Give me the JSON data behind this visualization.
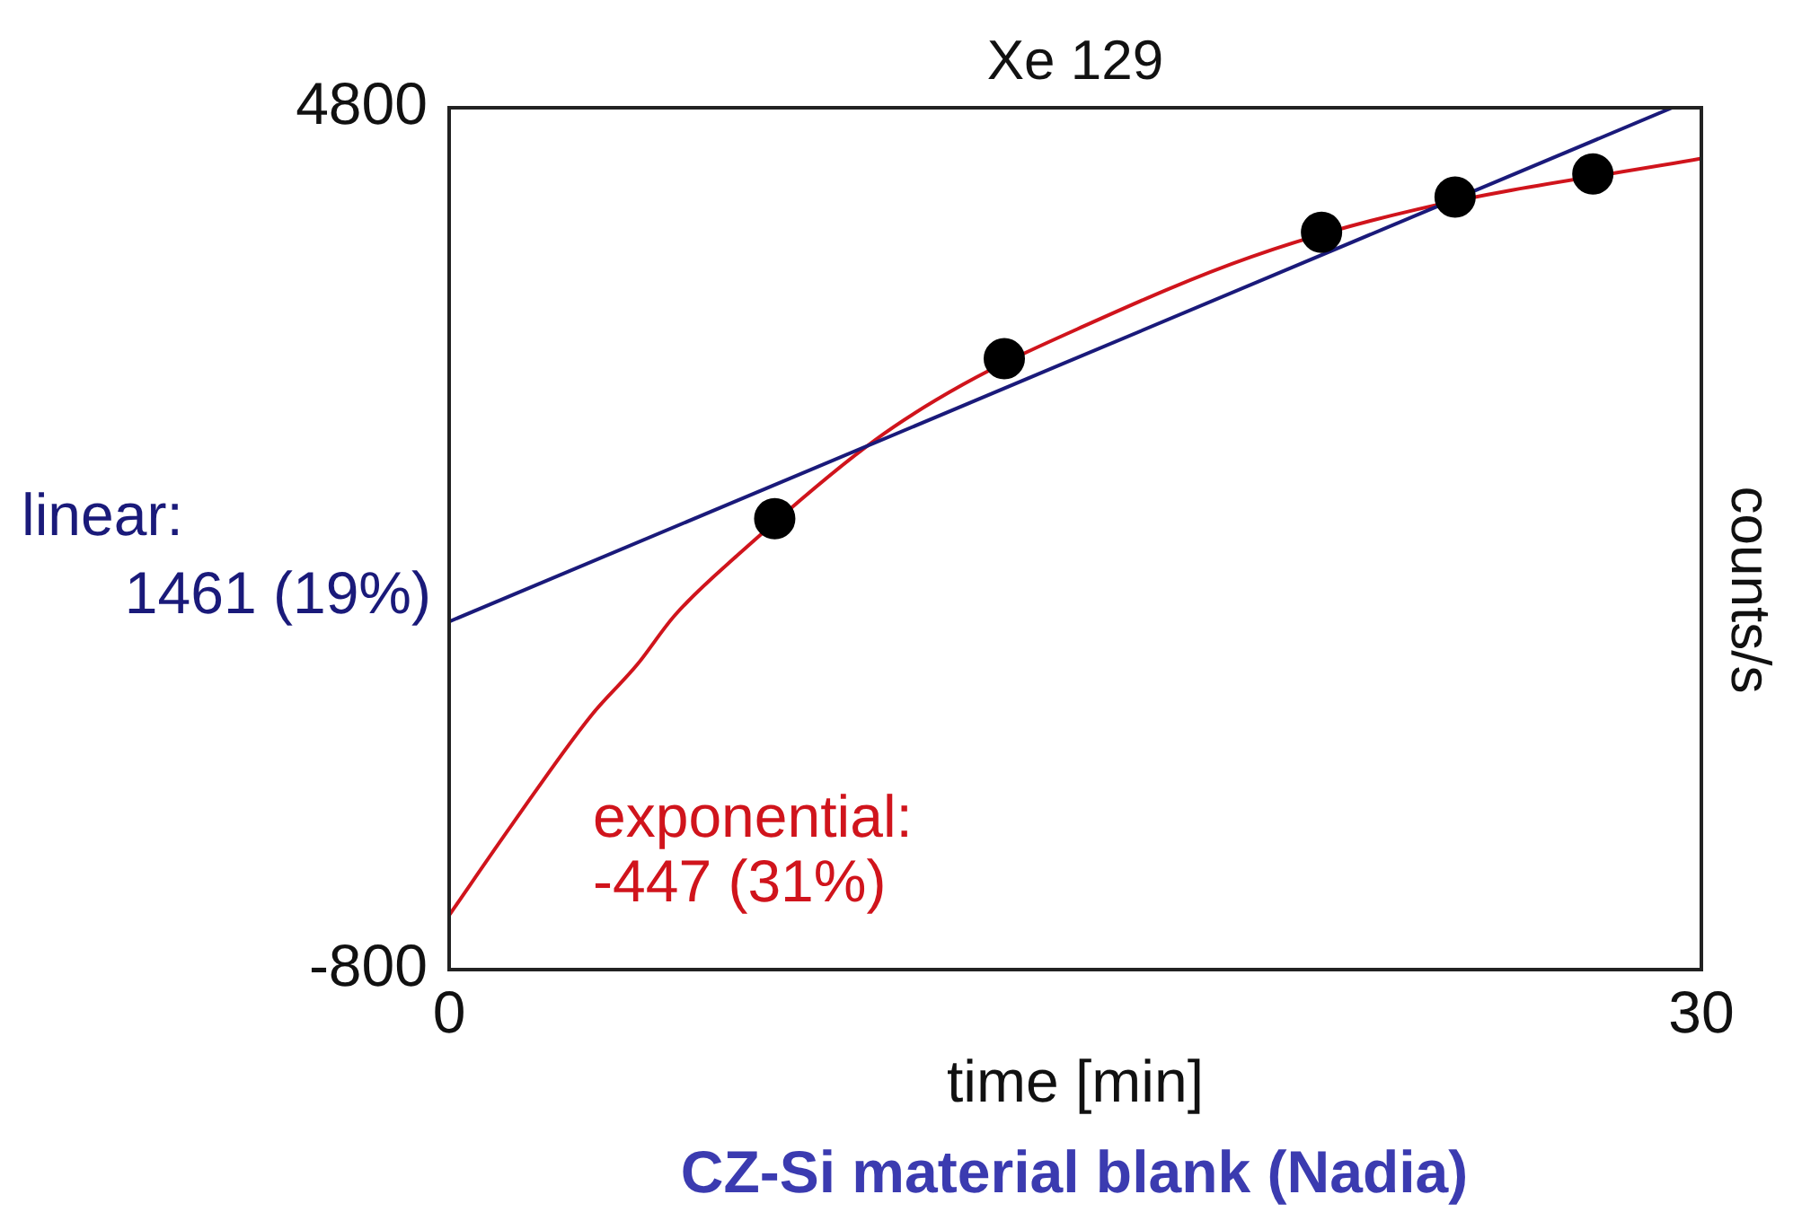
{
  "chart_data": {
    "type": "scatter",
    "title": "Xe 129",
    "xlabel": "time [min]",
    "ylabel": "counts/s",
    "xlim": [
      0,
      30
    ],
    "xticks": [
      0,
      30
    ],
    "ylim": [
      -800,
      4800
    ],
    "yticks": [
      -800,
      4800
    ],
    "x": [
      7.8,
      13.3,
      20.9,
      24.1,
      27.4
    ],
    "series": [
      {
        "color": "#000000",
        "marker": "circle",
        "values": [
          2130,
          3170,
          3990,
          4220,
          4370
        ]
      },
      {
        "type": "line",
        "name": "linear:",
        "color": "#1a1a7a",
        "x": [
          0,
          29.3
        ],
        "values": [
          1461,
          4800
        ]
      },
      {
        "type": "line",
        "name": "exponential:",
        "color": "#d0141c",
        "x": [
          0,
          1.5,
          3.4,
          4.5,
          5.4,
          6.9,
          10.2,
          12.3,
          15.2,
          19.2,
          23.2,
          30
        ],
        "values": [
          -447,
          140,
          850,
          1180,
          1500,
          1890,
          2640,
          3000,
          3380,
          3830,
          4140,
          4470
        ]
      }
    ],
    "annotations": [
      {
        "text": "1461 (19%)",
        "x": 0,
        "y": 1461
      },
      {
        "text": "-447 (31%)",
        "x": 0,
        "y": -447
      },
      "CZ-Si material blank (Nadia)"
    ]
  }
}
